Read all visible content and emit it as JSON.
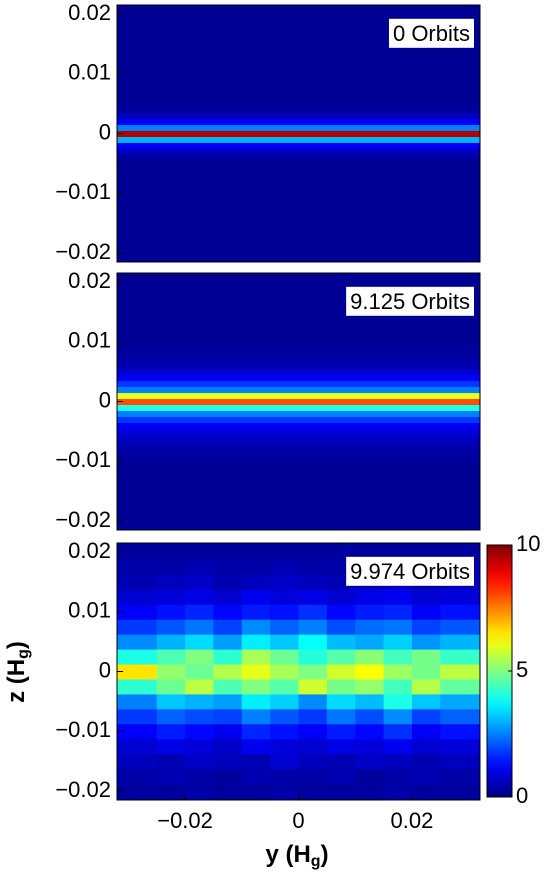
{
  "chart_data": [
    {
      "type": "heatmap",
      "label": "0 Orbits",
      "x": [
        0
      ],
      "y": [
        -0.02,
        -0.019,
        -0.018,
        -0.017,
        -0.016,
        -0.015,
        -0.014,
        -0.013,
        -0.012,
        -0.011,
        -0.01,
        -0.009,
        -0.008,
        -0.007,
        -0.006,
        -0.005,
        -0.004,
        -0.003,
        -0.002,
        -0.001,
        0,
        0.001,
        0.002,
        0.003,
        0.004,
        0.005,
        0.006,
        0.007,
        0.008,
        0.009,
        0.01,
        0.011,
        0.012,
        0.013,
        0.014,
        0.015,
        0.016,
        0.017,
        0.018,
        0.019,
        0.02
      ],
      "values": [
        [
          0.2
        ],
        [
          0.2
        ],
        [
          0.2
        ],
        [
          0.2
        ],
        [
          0.2
        ],
        [
          0.2
        ],
        [
          0.2
        ],
        [
          0.2
        ],
        [
          0.2
        ],
        [
          0.2
        ],
        [
          0.2
        ],
        [
          0.2
        ],
        [
          0.2
        ],
        [
          0.2
        ],
        [
          0.2
        ],
        [
          0.2
        ],
        [
          0.3
        ],
        [
          0.6
        ],
        [
          1.2
        ],
        [
          3
        ],
        [
          9.5
        ],
        [
          2.5
        ],
        [
          1.2
        ],
        [
          0.6
        ],
        [
          0.3
        ],
        [
          0.2
        ],
        [
          0.2
        ],
        [
          0.2
        ],
        [
          0.2
        ],
        [
          0.2
        ],
        [
          0.2
        ],
        [
          0.2
        ],
        [
          0.2
        ],
        [
          0.2
        ],
        [
          0.2
        ],
        [
          0.2
        ],
        [
          0.2
        ],
        [
          0.2
        ],
        [
          0.2
        ],
        [
          0.2
        ],
        [
          0.2
        ]
      ],
      "xlim": [
        -0.032,
        0.032
      ],
      "ylim": [
        -0.0215,
        0.0215
      ],
      "clim": [
        0,
        10
      ],
      "yticks": [
        {
          "value": -0.02,
          "label": "−0.02"
        },
        {
          "value": -0.01,
          "label": "−0.01"
        },
        0,
        0.01,
        0.02
      ]
    },
    {
      "type": "heatmap",
      "label": "9.125 Orbits",
      "x": [
        0
      ],
      "y": [
        -0.02,
        -0.019,
        -0.018,
        -0.017,
        -0.016,
        -0.015,
        -0.014,
        -0.013,
        -0.012,
        -0.011,
        -0.01,
        -0.009,
        -0.008,
        -0.007,
        -0.006,
        -0.005,
        -0.004,
        -0.003,
        -0.002,
        -0.001,
        0,
        0.001,
        0.002,
        0.003,
        0.004,
        0.005,
        0.006,
        0.007,
        0.008,
        0.009,
        0.01,
        0.011,
        0.012,
        0.013,
        0.014,
        0.015,
        0.016,
        0.017,
        0.018,
        0.019,
        0.02
      ],
      "values": [
        [
          0.2
        ],
        [
          0.2
        ],
        [
          0.2
        ],
        [
          0.2
        ],
        [
          0.2
        ],
        [
          0.2
        ],
        [
          0.2
        ],
        [
          0.2
        ],
        [
          0.2
        ],
        [
          0.2
        ],
        [
          0.3
        ],
        [
          0.3
        ],
        [
          0.4
        ],
        [
          0.5
        ],
        [
          0.7
        ],
        [
          0.9
        ],
        [
          1.2
        ],
        [
          1.8
        ],
        [
          2.5
        ],
        [
          4
        ],
        [
          8
        ],
        [
          6
        ],
        [
          2.5
        ],
        [
          1.8
        ],
        [
          1.2
        ],
        [
          0.8
        ],
        [
          0.5
        ],
        [
          0.4
        ],
        [
          0.3
        ],
        [
          0.3
        ],
        [
          0.2
        ],
        [
          0.2
        ],
        [
          0.2
        ],
        [
          0.2
        ],
        [
          0.2
        ],
        [
          0.2
        ],
        [
          0.2
        ],
        [
          0.2
        ],
        [
          0.2
        ],
        [
          0.2
        ],
        [
          0.2
        ]
      ],
      "xlim": [
        -0.032,
        0.032
      ],
      "ylim": [
        -0.0215,
        0.0215
      ],
      "clim": [
        0,
        10
      ],
      "yticks": [
        {
          "value": -0.02,
          "label": "−0.02"
        },
        {
          "value": -0.01,
          "label": "−0.01"
        },
        0,
        0.01,
        0.02
      ]
    },
    {
      "type": "heatmap",
      "label": "9.974 Orbits",
      "x": [
        -0.0275,
        -0.0225,
        -0.0175,
        -0.0125,
        -0.0075,
        -0.0025,
        0.0025,
        0.0075,
        0.0125,
        0.0175,
        0.0225,
        0.0275
      ],
      "y": [
        -0.02,
        -0.0175,
        -0.015,
        -0.0125,
        -0.01,
        -0.0075,
        -0.005,
        -0.0025,
        0,
        0.0025,
        0.005,
        0.0075,
        0.01,
        0.0125,
        0.015,
        0.0175,
        0.02
      ],
      "values": [
        [
          0.3,
          0.3,
          0.4,
          0.3,
          0.3,
          0.4,
          0.3,
          0.3,
          0.3,
          0.4,
          0.3,
          0.3
        ],
        [
          0.4,
          0.5,
          0.4,
          0.3,
          0.5,
          0.4,
          0.4,
          0.5,
          0.3,
          0.4,
          0.5,
          0.4
        ],
        [
          0.6,
          0.5,
          0.7,
          0.6,
          0.5,
          0.8,
          0.6,
          0.5,
          0.7,
          0.6,
          0.5,
          0.6
        ],
        [
          0.8,
          1.0,
          0.9,
          0.7,
          1.1,
          0.9,
          0.8,
          1.0,
          0.9,
          1.1,
          0.8,
          0.9
        ],
        [
          1.2,
          1.5,
          1.3,
          1.1,
          1.6,
          1.4,
          1.2,
          1.5,
          1.3,
          1.7,
          1.2,
          1.4
        ],
        [
          1.8,
          2.2,
          2.0,
          1.9,
          2.5,
          2.1,
          1.8,
          2.4,
          2.0,
          2.6,
          1.9,
          2.2
        ],
        [
          2.5,
          3.2,
          3.0,
          2.8,
          3.6,
          3.3,
          2.6,
          3.4,
          3.1,
          4.0,
          3.2,
          2.9
        ],
        [
          4.2,
          4.8,
          5.6,
          4.5,
          5.0,
          4.6,
          5.8,
          4.9,
          5.2,
          4.4,
          5.5,
          4.7
        ],
        [
          6.5,
          5.2,
          4.8,
          5.5,
          6.0,
          5.4,
          5.0,
          5.8,
          6.2,
          5.3,
          4.9,
          5.6
        ],
        [
          4.0,
          4.5,
          5.0,
          4.2,
          5.4,
          4.8,
          4.1,
          4.6,
          5.1,
          4.4,
          4.9,
          4.3
        ],
        [
          2.6,
          3.0,
          3.4,
          2.8,
          3.6,
          3.2,
          3.8,
          3.1,
          2.9,
          3.3,
          2.7,
          3.0
        ],
        [
          1.8,
          2.1,
          2.4,
          1.9,
          2.6,
          2.2,
          2.5,
          2.0,
          2.3,
          2.4,
          1.9,
          2.1
        ],
        [
          1.2,
          1.4,
          1.6,
          1.3,
          1.5,
          1.4,
          1.7,
          1.3,
          1.5,
          1.6,
          1.2,
          1.4
        ],
        [
          0.8,
          0.9,
          1.0,
          0.8,
          1.1,
          0.9,
          1.0,
          0.8,
          1.0,
          1.1,
          0.8,
          0.9
        ],
        [
          0.5,
          0.6,
          0.7,
          0.5,
          0.6,
          0.7,
          0.6,
          0.5,
          0.6,
          0.7,
          0.5,
          0.6
        ],
        [
          0.4,
          0.4,
          0.5,
          0.4,
          0.4,
          0.5,
          0.4,
          0.4,
          0.5,
          0.4,
          0.4,
          0.5
        ],
        [
          0.3,
          0.3,
          0.3,
          0.3,
          0.3,
          0.3,
          0.3,
          0.3,
          0.3,
          0.3,
          0.3,
          0.3
        ]
      ],
      "xlim": [
        -0.032,
        0.032
      ],
      "ylim": [
        -0.0215,
        0.0215
      ],
      "clim": [
        0,
        10
      ],
      "yticks": [
        {
          "value": -0.02,
          "label": "−0.02"
        },
        {
          "value": -0.01,
          "label": "−0.01"
        },
        0,
        0.01,
        0.02
      ],
      "xticks": [
        {
          "value": -0.02,
          "label": "−0.02"
        },
        0,
        0.02
      ],
      "colorbar_ticks": [
        0,
        5,
        10
      ],
      "xlabel_parts": [
        "y (H",
        "g",
        ")"
      ],
      "ylabel_parts": [
        "z (H",
        "g",
        ")"
      ]
    }
  ]
}
